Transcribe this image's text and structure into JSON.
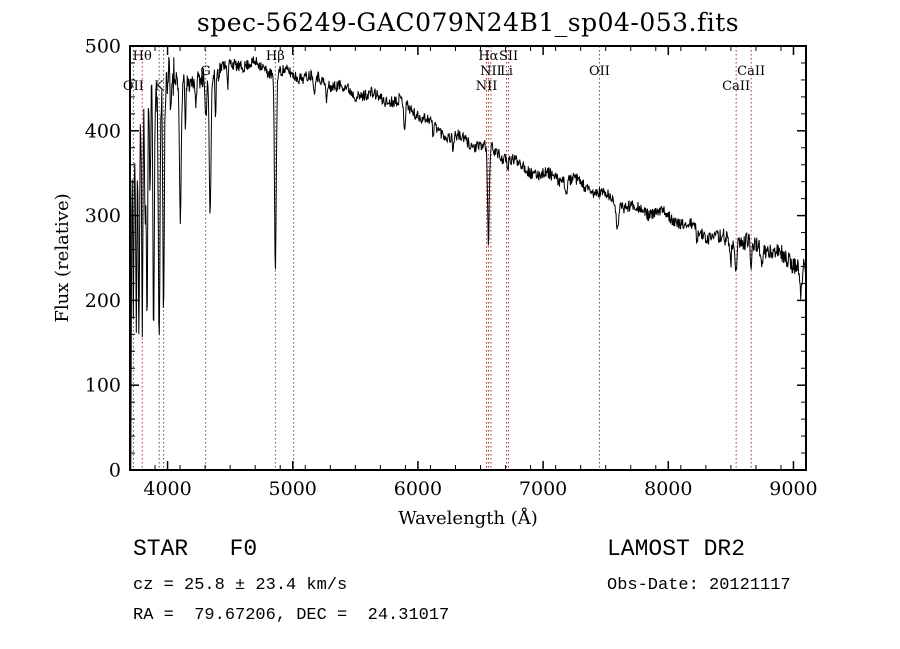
{
  "chart_data": {
    "type": "line",
    "title": "spec-56249-GAC079N24B1_sp04-053.fits",
    "xlabel": "Wavelength (Å)",
    "ylabel": "Flux (relative)",
    "xlim": [
      3700,
      9100
    ],
    "ylim": [
      0,
      500
    ],
    "x_ticks": [
      4000,
      5000,
      6000,
      7000,
      8000,
      9000
    ],
    "y_ticks": [
      0,
      100,
      200,
      300,
      400,
      500
    ],
    "x_minor_step": 200,
    "y_minor_step": 20,
    "grid": false,
    "legend": "none",
    "line_color": "#000000",
    "marker_color": "#8b3a3a",
    "continuum": [
      [
        3700,
        300
      ],
      [
        3740,
        380
      ],
      [
        3780,
        420
      ],
      [
        3850,
        440
      ],
      [
        3950,
        455
      ],
      [
        4050,
        468
      ],
      [
        4150,
        460
      ],
      [
        4250,
        458
      ],
      [
        4350,
        464
      ],
      [
        4450,
        472
      ],
      [
        4550,
        477
      ],
      [
        4650,
        480
      ],
      [
        4750,
        478
      ],
      [
        4850,
        472
      ],
      [
        4950,
        468
      ],
      [
        5050,
        464
      ],
      [
        5150,
        460
      ],
      [
        5250,
        457
      ],
      [
        5350,
        453
      ],
      [
        5450,
        450
      ],
      [
        5550,
        446
      ],
      [
        5650,
        441
      ],
      [
        5750,
        436
      ],
      [
        5850,
        431
      ],
      [
        5950,
        424
      ],
      [
        6050,
        415
      ],
      [
        6150,
        406
      ],
      [
        6250,
        398
      ],
      [
        6350,
        390
      ],
      [
        6450,
        383
      ],
      [
        6550,
        377
      ],
      [
        6650,
        371
      ],
      [
        6750,
        365
      ],
      [
        6850,
        359
      ],
      [
        6950,
        353
      ],
      [
        7100,
        345
      ],
      [
        7300,
        334
      ],
      [
        7500,
        323
      ],
      [
        7700,
        312
      ],
      [
        7900,
        301
      ],
      [
        8100,
        291
      ],
      [
        8300,
        281
      ],
      [
        8500,
        271
      ],
      [
        8700,
        262
      ],
      [
        8900,
        253
      ],
      [
        9000,
        248
      ],
      [
        9100,
        240
      ]
    ],
    "absorption_features": [
      [
        3705,
        340,
        4
      ],
      [
        3727,
        160,
        4
      ],
      [
        3750,
        230,
        5
      ],
      [
        3771,
        250,
        5
      ],
      [
        3798,
        270,
        5
      ],
      [
        3820,
        140,
        4
      ],
      [
        3835,
        280,
        5
      ],
      [
        3860,
        130,
        4
      ],
      [
        3889,
        290,
        5
      ],
      [
        3933,
        320,
        6
      ],
      [
        3968,
        270,
        6
      ],
      [
        4026,
        60,
        4
      ],
      [
        4102,
        170,
        7
      ],
      [
        4144,
        50,
        4
      ],
      [
        4226,
        45,
        4
      ],
      [
        4304,
        55,
        6
      ],
      [
        4340,
        155,
        7
      ],
      [
        4383,
        50,
        4
      ],
      [
        4481,
        35,
        4
      ],
      [
        4861,
        230,
        7
      ],
      [
        5172,
        25,
        5
      ],
      [
        5270,
        20,
        5
      ],
      [
        5893,
        32,
        6
      ],
      [
        6122,
        18,
        5
      ],
      [
        6280,
        15,
        5
      ],
      [
        6563,
        115,
        7
      ],
      [
        6717,
        14,
        4
      ],
      [
        7186,
        15,
        6
      ],
      [
        7594,
        25,
        9
      ],
      [
        8230,
        18,
        6
      ],
      [
        8498,
        26,
        6
      ],
      [
        8542,
        36,
        6
      ],
      [
        8662,
        38,
        6
      ],
      [
        8750,
        18,
        5
      ],
      [
        9060,
        35,
        8
      ]
    ],
    "noise": {
      "base": 7,
      "blue": 26,
      "blue_limit": 4060,
      "mid_blue": 12,
      "mid_blue_limit": 4420,
      "red": 10,
      "red_limit": 8400,
      "seed": 11
    },
    "spectral_markers": [
      {
        "label": "OII",
        "wavelength": 3727,
        "row": 3
      },
      {
        "label": "Hθ",
        "wavelength": 3798,
        "row": 1
      },
      {
        "label": "K",
        "wavelength": 3933,
        "row": 3
      },
      {
        "label": "",
        "wavelength": 3968,
        "row": 0
      },
      {
        "label": "G",
        "wavelength": 4304,
        "row": 2
      },
      {
        "label": "Hβ",
        "wavelength": 4861,
        "row": 1
      },
      {
        "label": "",
        "wavelength": 5007,
        "row": 0
      },
      {
        "label": "NII",
        "wavelength": 6548,
        "row": 3
      },
      {
        "label": "Hα",
        "wavelength": 6563,
        "row": 1
      },
      {
        "label": "NII",
        "wavelength": 6583,
        "row": 2
      },
      {
        "label": "Li",
        "wavelength": 6708,
        "row": 2
      },
      {
        "label": "SII",
        "wavelength": 6724,
        "row": 1
      },
      {
        "label": "OII",
        "wavelength": 7450,
        "row": 2
      },
      {
        "label": "CaII",
        "wavelength": 8542,
        "row": 3
      },
      {
        "label": "CaII",
        "wavelength": 8662,
        "row": 2
      }
    ]
  },
  "annotations": {
    "classification": "STAR   F0",
    "survey": "LAMOST DR2",
    "cz": "cz = 25.8 ± 23.4 km/s",
    "obs_date": "Obs-Date: 20121117",
    "ra_dec": "RA =  79.67206, DEC =  24.31017"
  }
}
